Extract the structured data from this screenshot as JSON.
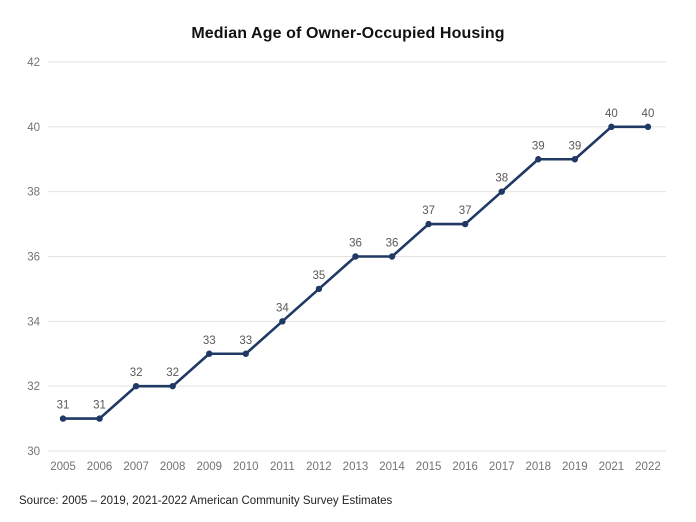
{
  "page": {
    "background": "#ffffff"
  },
  "chart_data": {
    "type": "line",
    "title": "Median Age of Owner-Occupied Housing",
    "categories": [
      "2005",
      "2006",
      "2007",
      "2008",
      "2009",
      "2010",
      "2011",
      "2012",
      "2013",
      "2014",
      "2015",
      "2016",
      "2017",
      "2018",
      "2019",
      "2021",
      "2022"
    ],
    "values": [
      31,
      31,
      32,
      32,
      33,
      33,
      34,
      35,
      36,
      36,
      37,
      37,
      38,
      39,
      39,
      40,
      40
    ],
    "series_name": "Median age",
    "xlabel": "",
    "ylabel": "",
    "ylim": [
      30,
      42
    ],
    "yticks": [
      30,
      32,
      34,
      36,
      38,
      40,
      42
    ],
    "grid": "horizontal",
    "legend_position": "none",
    "data_labels_shown": true,
    "line_color": "#1F3864",
    "marker_shape": "circle",
    "data_label_color": "#595959",
    "axis_tick_color": "#737373",
    "gridline_color": "#E2E2E2"
  },
  "footer": {
    "source": "Source: 2005 – 2019, 2021-2022 American Community Survey Estimates"
  }
}
